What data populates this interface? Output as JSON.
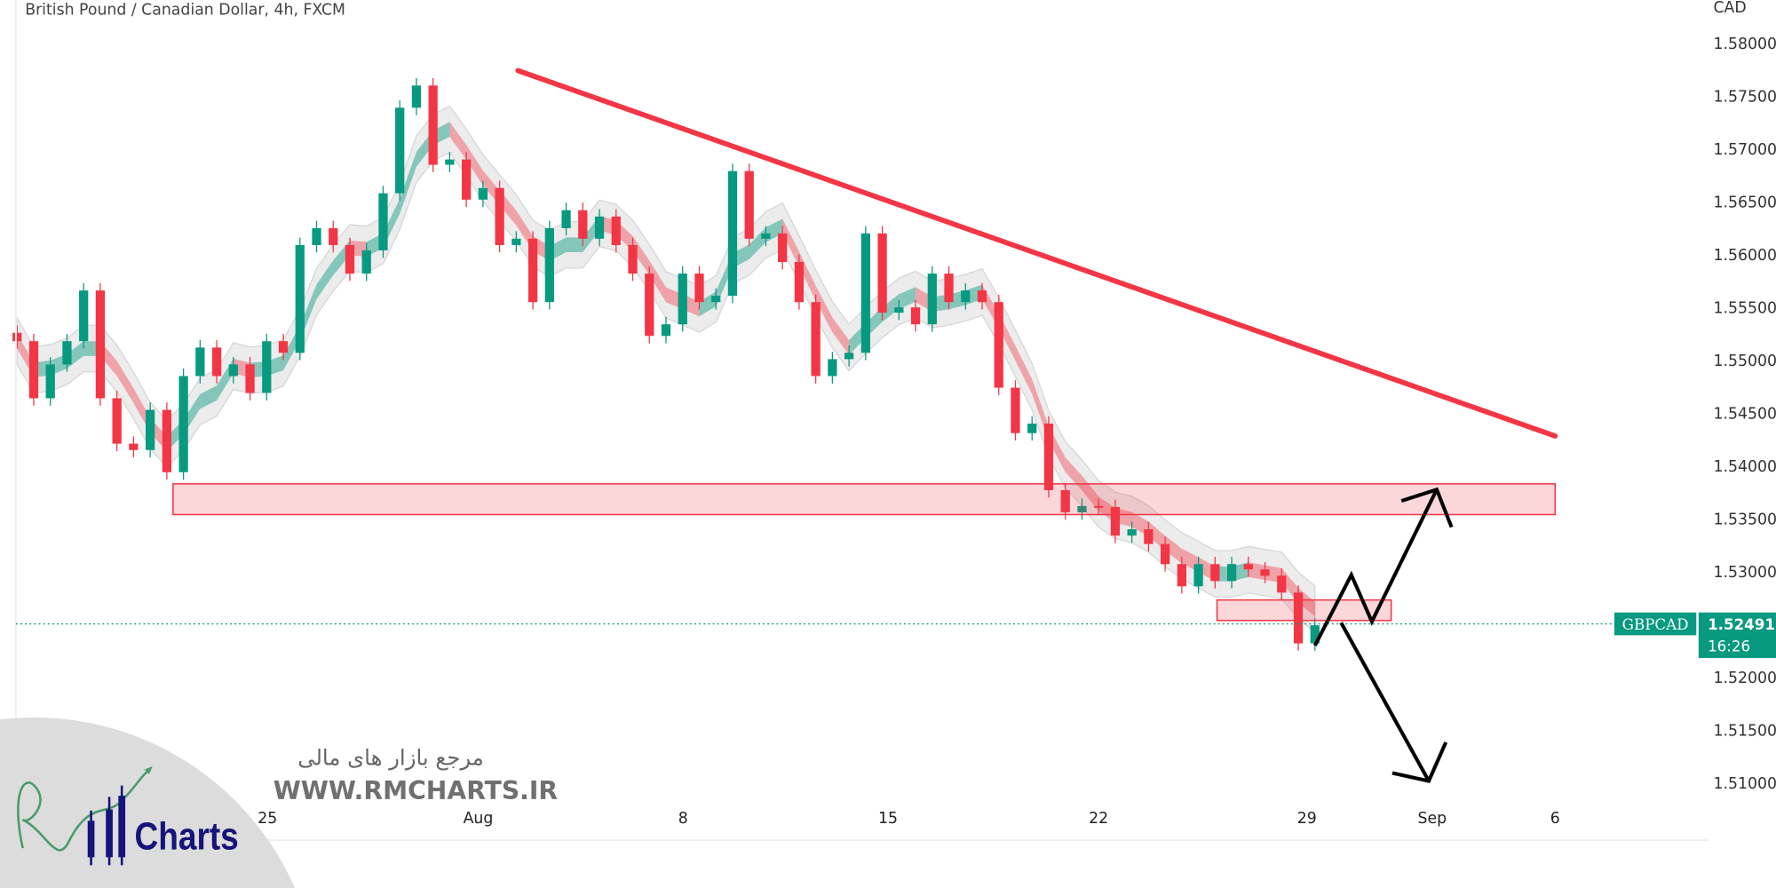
{
  "header": {
    "title": "British Pound / Canadian Dollar, 4h, FXCM"
  },
  "price_axis": {
    "currency": "CAD"
  },
  "last_price": {
    "symbol": "GBPCAD",
    "price": "1.52491",
    "countdown": "16:26",
    "color": "#089981"
  },
  "watermark": {
    "persian": "مرجع بازار های مالی",
    "url": "WWW.RMCHARTS.IR",
    "logo_text": "Charts",
    "logo_letters": "RM"
  },
  "colors": {
    "up": "#089981",
    "down": "#f23645",
    "trendline": "#f23645",
    "zone": "#f23645",
    "arrows": "#000000",
    "band": "#e0e0e0"
  },
  "chart_data": {
    "type": "candlestick",
    "title": "British Pound / Canadian Dollar, 4h, FXCM",
    "ylabel": "CAD",
    "ylim": [
      1.5055,
      1.5825
    ],
    "yticks": [
      "1.58000",
      "1.57500",
      "1.57000",
      "1.56500",
      "1.56000",
      "1.55500",
      "1.55000",
      "1.54500",
      "1.54000",
      "1.53500",
      "1.53000",
      "1.52000",
      "1.51500",
      "1.51000"
    ],
    "xticks": [
      "25",
      "Aug",
      "8",
      "15",
      "22",
      "29",
      "Sep",
      "6"
    ],
    "closes": [
      1.5518,
      1.5464,
      1.5496,
      1.5518,
      1.5566,
      1.5464,
      1.5421,
      1.5415,
      1.5453,
      1.5394,
      1.5485,
      1.5512,
      1.5485,
      1.5496,
      1.5469,
      1.5518,
      1.5507,
      1.5609,
      1.5625,
      1.5609,
      1.5582,
      1.5604,
      1.5658,
      1.5739,
      1.576,
      1.5685,
      1.569,
      1.5652,
      1.5663,
      1.5609,
      1.5615,
      1.5555,
      1.5625,
      1.5642,
      1.5615,
      1.5636,
      1.5609,
      1.5582,
      1.5523,
      1.5534,
      1.5582,
      1.5555,
      1.5561,
      1.5679,
      1.5615,
      1.562,
      1.5593,
      1.5555,
      1.5485,
      1.5501,
      1.5507,
      1.562,
      1.5545,
      1.555,
      1.5534,
      1.5582,
      1.5555,
      1.5566,
      1.5555,
      1.5474,
      1.5431,
      1.544,
      1.5377,
      1.5356,
      1.5362,
      1.5361,
      1.5334,
      1.534,
      1.5326,
      1.5307,
      1.5286,
      1.5307,
      1.5291,
      1.5307,
      1.5302,
      1.5296,
      1.528,
      1.5232,
      1.52491
    ],
    "current_price": 1.52491,
    "annotations": {
      "trendline": {
        "from": {
          "date": "Aug 2",
          "price": 1.5773
        },
        "to": {
          "date": "Sep 6",
          "price": 1.5427
        }
      },
      "resistance_zone": {
        "top": 1.5382,
        "bottom": 1.5353
      },
      "support_zone": {
        "top": 1.5273,
        "bottom": 1.5254
      },
      "scenario_up_target": 1.538,
      "scenario_down_target": 1.51
    }
  }
}
